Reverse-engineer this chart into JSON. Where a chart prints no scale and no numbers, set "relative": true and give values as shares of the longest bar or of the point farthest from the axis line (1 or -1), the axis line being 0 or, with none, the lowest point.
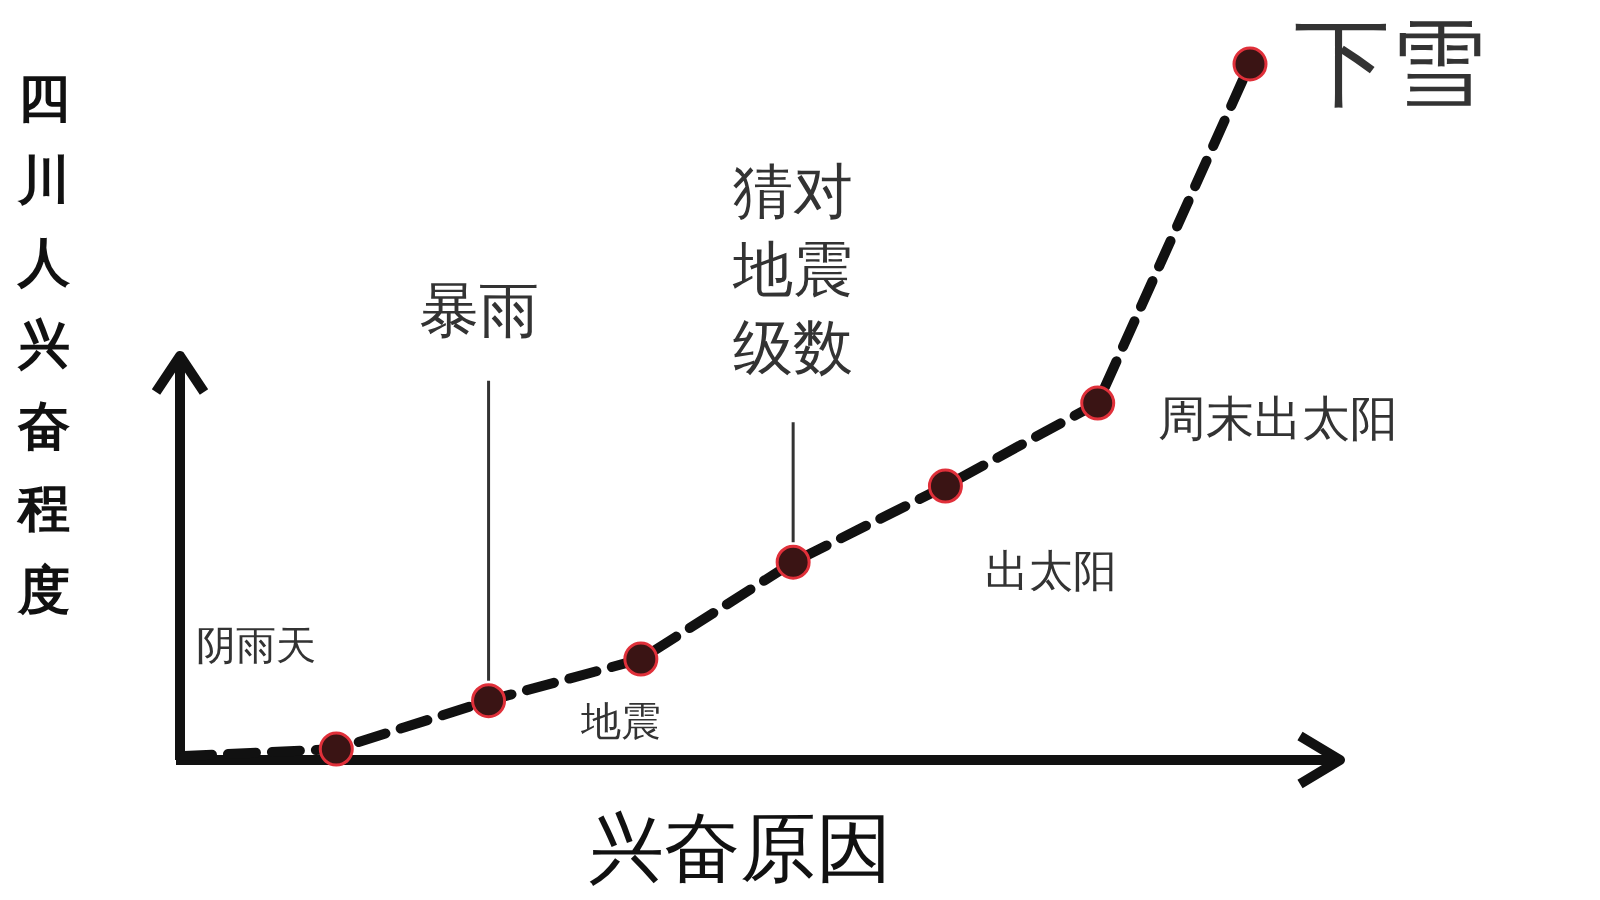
{
  "chart_data": {
    "type": "line",
    "relative": true,
    "ylabel": "四川人兴奋程度",
    "xlabel": "兴奋原因",
    "categories": [
      null,
      null,
      null,
      null,
      null,
      null,
      null,
      null
    ],
    "series": [
      {
        "color": "#111111",
        "values": [
          0,
          0.01,
          0.08,
          0.14,
          0.28,
          0.39,
          0.51,
          1
        ]
      }
    ],
    "annotations": [
      "阴雨天",
      "暴雨",
      "地震",
      "猜对地震级数",
      "出太阳",
      "周末出太阳",
      "下雪"
    ],
    "marker": "circle",
    "line_style": "dashed"
  }
}
